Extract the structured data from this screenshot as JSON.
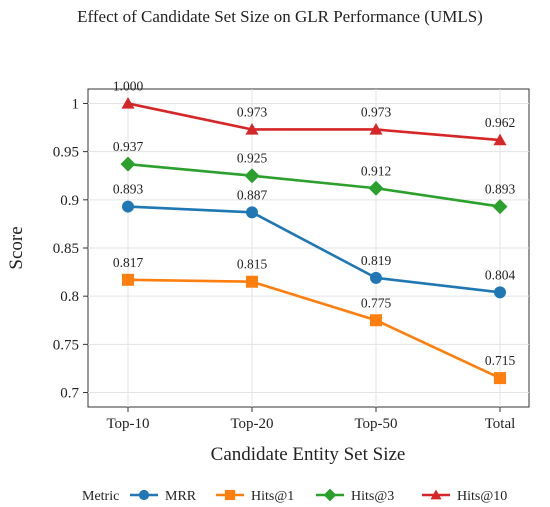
{
  "chart_data": {
    "type": "line",
    "title": "Effect of Candidate Set Size on GLR Performance (UMLS)",
    "xlabel": "Candidate Entity Set Size",
    "ylabel": "Score",
    "categories": [
      "Top-10",
      "Top-20",
      "Top-50",
      "Total"
    ],
    "ylim": [
      0.685,
      1.015
    ],
    "yticks": [
      "0.7",
      "0.75",
      "0.8",
      "0.85",
      "0.9",
      "0.95",
      "1"
    ],
    "grid": true,
    "legend": {
      "title": "Metric",
      "position": "bottom"
    },
    "series": [
      {
        "name": "MRR",
        "color": "#1f77b4",
        "marker": "circle",
        "values": [
          0.893,
          0.887,
          0.819,
          0.804
        ],
        "labels": [
          "0.893",
          "0.887",
          "0.819",
          "0.804"
        ]
      },
      {
        "name": "Hits@1",
        "color": "#ff7f0e",
        "marker": "square",
        "values": [
          0.817,
          0.815,
          0.775,
          0.715
        ],
        "labels": [
          "0.817",
          "0.815",
          "0.775",
          "0.715"
        ]
      },
      {
        "name": "Hits@3",
        "color": "#2ca02c",
        "marker": "diamond",
        "values": [
          0.937,
          0.925,
          0.912,
          0.893
        ],
        "labels": [
          "0.937",
          "0.925",
          "0.912",
          "0.893"
        ]
      },
      {
        "name": "Hits@10",
        "color": "#d62728",
        "marker": "triangle",
        "values": [
          1.0,
          0.973,
          0.973,
          0.962
        ],
        "labels": [
          "1.000",
          "0.973",
          "0.973",
          "0.962"
        ]
      }
    ]
  }
}
